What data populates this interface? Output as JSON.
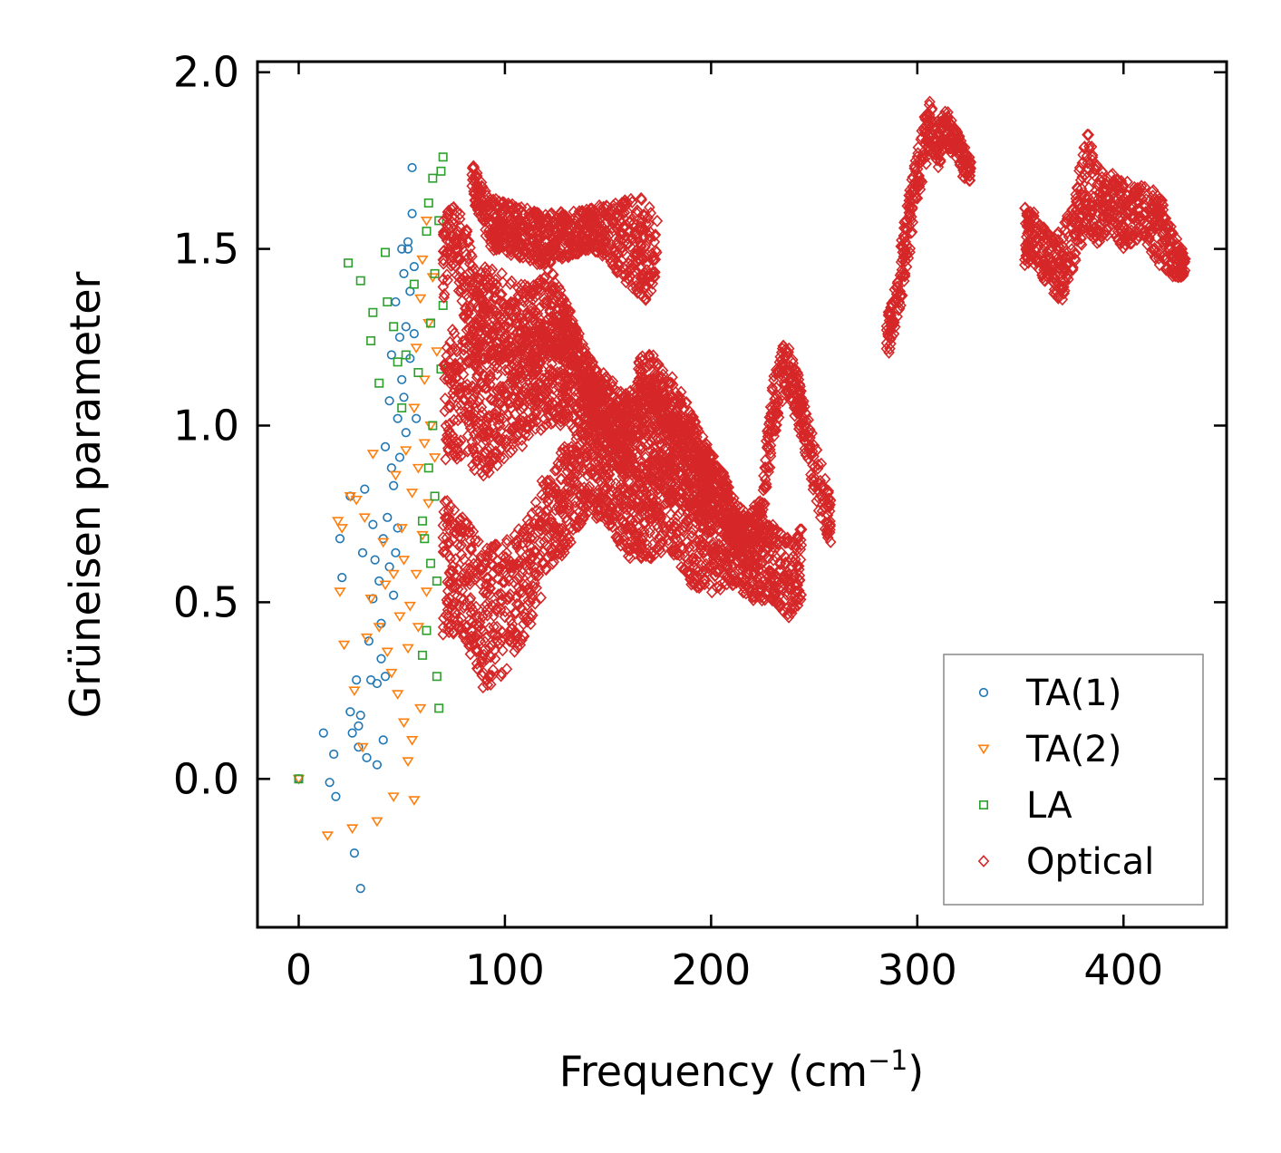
{
  "chart_data": {
    "type": "scatter",
    "title": "",
    "xlabel": "Frequency (cm",
    "xlabel_sup": "−1",
    "xlabel_end": ")",
    "ylabel": "Grüneisen parameter",
    "xlim": [
      -20,
      450
    ],
    "ylim": [
      -0.42,
      2.03
    ],
    "x_ticks": [
      0,
      100,
      200,
      300,
      400
    ],
    "x_tick_labels": [
      "0",
      "100",
      "200",
      "300",
      "400"
    ],
    "y_ticks": [
      0.0,
      0.5,
      1.0,
      1.5,
      2.0
    ],
    "y_tick_labels": [
      "0.0",
      "0.5",
      "1.0",
      "1.5",
      "2.0"
    ],
    "grid": false,
    "legend_position": "bottom-right",
    "series": [
      {
        "name": "TA(1)",
        "color": "#1f77b4",
        "marker": "circle",
        "points": [
          [
            0,
            0
          ],
          [
            12,
            0.13
          ],
          [
            15,
            -0.01
          ],
          [
            17,
            0.07
          ],
          [
            18,
            -0.05
          ],
          [
            20,
            0.68
          ],
          [
            21,
            0.57
          ],
          [
            25,
            0.8
          ],
          [
            25,
            0.19
          ],
          [
            26,
            0.13
          ],
          [
            27,
            -0.21
          ],
          [
            28,
            0.28
          ],
          [
            29,
            0.15
          ],
          [
            29,
            0.09
          ],
          [
            30,
            -0.31
          ],
          [
            30,
            0.18
          ],
          [
            31,
            0.64
          ],
          [
            32,
            0.82
          ],
          [
            33,
            0.06
          ],
          [
            34,
            0.39
          ],
          [
            35,
            0.28
          ],
          [
            36,
            0.51
          ],
          [
            36,
            0.72
          ],
          [
            37,
            0.62
          ],
          [
            38,
            0.27
          ],
          [
            38,
            0.04
          ],
          [
            39,
            0.56
          ],
          [
            40,
            0.44
          ],
          [
            40,
            0.34
          ],
          [
            41,
            0.68
          ],
          [
            41,
            0.11
          ],
          [
            42,
            0.29
          ],
          [
            42,
            0.94
          ],
          [
            43,
            0.74
          ],
          [
            44,
            0.6
          ],
          [
            44,
            1.07
          ],
          [
            45,
            0.88
          ],
          [
            45,
            1.2
          ],
          [
            46,
            0.52
          ],
          [
            46,
            0.83
          ],
          [
            47,
            0.64
          ],
          [
            47,
            1.35
          ],
          [
            48,
            1.02
          ],
          [
            48,
            0.71
          ],
          [
            49,
            1.25
          ],
          [
            49,
            0.91
          ],
          [
            50,
            1.5
          ],
          [
            50,
            1.13
          ],
          [
            51,
            1.43
          ],
          [
            51,
            1.08
          ],
          [
            52,
            1.28
          ],
          [
            52,
            0.98
          ],
          [
            53,
            1.5
          ],
          [
            53,
            1.52
          ],
          [
            54,
            1.38
          ],
          [
            54,
            1.19
          ],
          [
            55,
            1.73
          ],
          [
            55,
            1.6
          ],
          [
            56,
            1.45
          ],
          [
            56,
            1.26
          ],
          [
            57,
            1.02
          ]
        ]
      },
      {
        "name": "TA(2)",
        "color": "#ff7f0e",
        "marker": "triangle-down",
        "points": [
          [
            0,
            0
          ],
          [
            14,
            -0.16
          ],
          [
            19,
            0.73
          ],
          [
            20,
            0.53
          ],
          [
            21,
            0.71
          ],
          [
            22,
            0.38
          ],
          [
            25,
            0.8
          ],
          [
            26,
            -0.14
          ],
          [
            27,
            0.25
          ],
          [
            28,
            0.79
          ],
          [
            31,
            0.09
          ],
          [
            32,
            0.74
          ],
          [
            33,
            0.4
          ],
          [
            35,
            0.51
          ],
          [
            36,
            0.92
          ],
          [
            38,
            -0.12
          ],
          [
            39,
            0.43
          ],
          [
            41,
            0.67
          ],
          [
            42,
            0.55
          ],
          [
            43,
            0.36
          ],
          [
            45,
            0.3
          ],
          [
            46,
            -0.05
          ],
          [
            46,
            0.58
          ],
          [
            47,
            0.86
          ],
          [
            48,
            0.24
          ],
          [
            49,
            0.46
          ],
          [
            50,
            0.71
          ],
          [
            51,
            0.16
          ],
          [
            51,
            0.62
          ],
          [
            52,
            0.93
          ],
          [
            53,
            0.05
          ],
          [
            53,
            0.37
          ],
          [
            54,
            0.49
          ],
          [
            55,
            0.11
          ],
          [
            55,
            0.81
          ],
          [
            56,
            -0.06
          ],
          [
            56,
            1.05
          ],
          [
            57,
            0.58
          ],
          [
            57,
            1.22
          ],
          [
            58,
            0.43
          ],
          [
            58,
            0.88
          ],
          [
            59,
            0.2
          ],
          [
            59,
            1.36
          ],
          [
            60,
            0.69
          ],
          [
            60,
            1.47
          ],
          [
            61,
            0.95
          ],
          [
            61,
            1.13
          ],
          [
            62,
            0.53
          ],
          [
            62,
            1.58
          ],
          [
            63,
            0.78
          ],
          [
            63,
            1.29
          ],
          [
            64,
            1.0
          ],
          [
            65,
            1.42
          ],
          [
            66,
            0.91
          ],
          [
            67,
            1.21
          ]
        ]
      },
      {
        "name": "LA",
        "color": "#2ca02c",
        "marker": "square",
        "points": [
          [
            0,
            0
          ],
          [
            24,
            1.46
          ],
          [
            30,
            1.41
          ],
          [
            35,
            1.24
          ],
          [
            36,
            1.32
          ],
          [
            39,
            1.12
          ],
          [
            42,
            1.49
          ],
          [
            43,
            1.35
          ],
          [
            46,
            1.28
          ],
          [
            48,
            1.18
          ],
          [
            50,
            1.05
          ],
          [
            52,
            1.2
          ],
          [
            56,
            1.4
          ],
          [
            58,
            1.15
          ],
          [
            60,
            0.35
          ],
          [
            60,
            0.73
          ],
          [
            61,
            0.68
          ],
          [
            62,
            1.55
          ],
          [
            62,
            0.42
          ],
          [
            63,
            1.63
          ],
          [
            63,
            0.88
          ],
          [
            64,
            1.29
          ],
          [
            64,
            0.61
          ],
          [
            65,
            1.7
          ],
          [
            65,
            1.0
          ],
          [
            66,
            1.43
          ],
          [
            66,
            0.8
          ],
          [
            67,
            0.56
          ],
          [
            67,
            0.29
          ],
          [
            68,
            1.58
          ],
          [
            68,
            0.2
          ],
          [
            69,
            1.72
          ],
          [
            69,
            1.16
          ],
          [
            70,
            1.76
          ],
          [
            70,
            1.34
          ]
        ]
      },
      {
        "name": "Optical",
        "color": "#d62728",
        "marker": "diamond",
        "bands": [
          [
            [
              70,
              1.35,
              1.6
            ],
            [
              75,
              1.45,
              1.65
            ],
            [
              80,
              1.3,
              1.6
            ],
            [
              85,
              1.2,
              1.45
            ],
            [
              95,
              1.2,
              1.45
            ],
            [
              105,
              1.15,
              1.4
            ],
            [
              115,
              1.15,
              1.4
            ],
            [
              122,
              1.2,
              1.45
            ],
            [
              130,
              1.2,
              1.35
            ],
            [
              140,
              1.05,
              1.2
            ],
            [
              150,
              0.95,
              1.1
            ],
            [
              158,
              0.9,
              1.05
            ],
            [
              166,
              1.0,
              1.2
            ],
            [
              172,
              1.05,
              1.2
            ],
            [
              180,
              0.95,
              1.15
            ],
            [
              190,
              0.85,
              1.05
            ],
            [
              198,
              0.8,
              0.95
            ],
            [
              205,
              0.72,
              0.88
            ],
            [
              212,
              0.65,
              0.78
            ],
            [
              218,
              0.6,
              0.75
            ],
            [
              224,
              0.65,
              0.8
            ],
            [
              230,
              0.95,
              1.15
            ],
            [
              236,
              1.1,
              1.25
            ],
            [
              242,
              1.0,
              1.15
            ],
            [
              248,
              0.85,
              1.0
            ],
            [
              254,
              0.72,
              0.88
            ],
            [
              258,
              0.65,
              0.8
            ]
          ],
          [
            [
              70,
              0.4,
              0.8
            ],
            [
              80,
              0.4,
              0.75
            ],
            [
              90,
              0.25,
              0.65
            ],
            [
              100,
              0.3,
              0.68
            ],
            [
              110,
              0.4,
              0.72
            ],
            [
              120,
              0.55,
              0.88
            ],
            [
              130,
              0.65,
              0.95
            ],
            [
              140,
              0.75,
              1.0
            ],
            [
              150,
              0.72,
              0.95
            ],
            [
              160,
              0.62,
              0.85
            ],
            [
              170,
              0.62,
              0.9
            ],
            [
              180,
              0.65,
              0.95
            ],
            [
              190,
              0.55,
              0.85
            ],
            [
              200,
              0.52,
              0.78
            ],
            [
              210,
              0.55,
              0.75
            ],
            [
              220,
              0.5,
              0.72
            ],
            [
              230,
              0.5,
              0.72
            ],
            [
              238,
              0.45,
              0.68
            ],
            [
              244,
              0.5,
              0.72
            ]
          ],
          [
            [
              70,
              0.9,
              1.3
            ],
            [
              80,
              0.9,
              1.25
            ],
            [
              90,
              0.85,
              1.2
            ],
            [
              100,
              0.9,
              1.25
            ],
            [
              110,
              0.95,
              1.25
            ],
            [
              120,
              1.0,
              1.3
            ],
            [
              130,
              1.0,
              1.3
            ],
            [
              140,
              0.95,
              1.2
            ],
            [
              150,
              0.9,
              1.15
            ],
            [
              160,
              0.85,
              1.1
            ],
            [
              170,
              0.85,
              1.15
            ],
            [
              180,
              0.8,
              1.05
            ],
            [
              190,
              0.75,
              1.0
            ],
            [
              200,
              0.7,
              0.92
            ]
          ],
          [
            [
              84,
              1.65,
              1.75
            ],
            [
              92,
              1.5,
              1.65
            ],
            [
              118,
              1.45,
              1.6
            ],
            [
              142,
              1.5,
              1.62
            ],
            [
              168,
              1.35,
              1.65
            ],
            [
              174,
              1.4,
              1.58
            ]
          ],
          [
            [
              285,
              1.18,
              1.3
            ],
            [
              290,
              1.28,
              1.42
            ],
            [
              294,
              1.4,
              1.6
            ],
            [
              298,
              1.55,
              1.72
            ],
            [
              302,
              1.68,
              1.85
            ],
            [
              306,
              1.78,
              1.92
            ],
            [
              310,
              1.72,
              1.85
            ],
            [
              314,
              1.8,
              1.9
            ],
            [
              318,
              1.75,
              1.85
            ],
            [
              322,
              1.7,
              1.8
            ],
            [
              326,
              1.68,
              1.76
            ]
          ],
          [
            [
              352,
              1.45,
              1.62
            ],
            [
              358,
              1.45,
              1.6
            ],
            [
              364,
              1.38,
              1.55
            ],
            [
              370,
              1.35,
              1.55
            ],
            [
              376,
              1.45,
              1.65
            ],
            [
              382,
              1.55,
              1.85
            ],
            [
              388,
              1.5,
              1.72
            ],
            [
              394,
              1.55,
              1.72
            ],
            [
              400,
              1.5,
              1.7
            ],
            [
              406,
              1.52,
              1.68
            ],
            [
              412,
              1.5,
              1.68
            ],
            [
              418,
              1.45,
              1.65
            ],
            [
              424,
              1.42,
              1.55
            ],
            [
              430,
              1.42,
              1.48
            ]
          ]
        ]
      }
    ]
  }
}
